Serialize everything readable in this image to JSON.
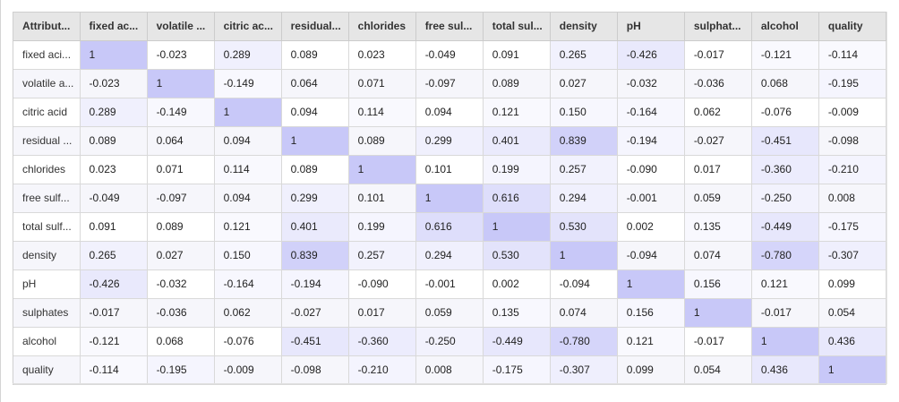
{
  "table": {
    "headers": [
      "Attribut...",
      "fixed ac...",
      "volatile ...",
      "citric ac...",
      "residual...",
      "chlorides",
      "free sul...",
      "total sul...",
      "density",
      "pH",
      "sulphat...",
      "alcohol",
      "quality"
    ],
    "rows": [
      {
        "label": "fixed aci...",
        "values": [
          "1",
          "-0.023",
          "0.289",
          "0.089",
          "0.023",
          "-0.049",
          "0.091",
          "0.265",
          "-0.426",
          "-0.017",
          "-0.121",
          "-0.114"
        ]
      },
      {
        "label": "volatile a...",
        "values": [
          "-0.023",
          "1",
          "-0.149",
          "0.064",
          "0.071",
          "-0.097",
          "0.089",
          "0.027",
          "-0.032",
          "-0.036",
          "0.068",
          "-0.195"
        ]
      },
      {
        "label": "citric acid",
        "values": [
          "0.289",
          "-0.149",
          "1",
          "0.094",
          "0.114",
          "0.094",
          "0.121",
          "0.150",
          "-0.164",
          "0.062",
          "-0.076",
          "-0.009"
        ]
      },
      {
        "label": "residual ...",
        "values": [
          "0.089",
          "0.064",
          "0.094",
          "1",
          "0.089",
          "0.299",
          "0.401",
          "0.839",
          "-0.194",
          "-0.027",
          "-0.451",
          "-0.098"
        ]
      },
      {
        "label": "chlorides",
        "values": [
          "0.023",
          "0.071",
          "0.114",
          "0.089",
          "1",
          "0.101",
          "0.199",
          "0.257",
          "-0.090",
          "0.017",
          "-0.360",
          "-0.210"
        ]
      },
      {
        "label": "free sulf...",
        "values": [
          "-0.049",
          "-0.097",
          "0.094",
          "0.299",
          "0.101",
          "1",
          "0.616",
          "0.294",
          "-0.001",
          "0.059",
          "-0.250",
          "0.008"
        ]
      },
      {
        "label": "total sulf...",
        "values": [
          "0.091",
          "0.089",
          "0.121",
          "0.401",
          "0.199",
          "0.616",
          "1",
          "0.530",
          "0.002",
          "0.135",
          "-0.449",
          "-0.175"
        ]
      },
      {
        "label": "density",
        "values": [
          "0.265",
          "0.027",
          "0.150",
          "0.839",
          "0.257",
          "0.294",
          "0.530",
          "1",
          "-0.094",
          "0.074",
          "-0.780",
          "-0.307"
        ]
      },
      {
        "label": "pH",
        "values": [
          "-0.426",
          "-0.032",
          "-0.164",
          "-0.194",
          "-0.090",
          "-0.001",
          "0.002",
          "-0.094",
          "1",
          "0.156",
          "0.121",
          "0.099"
        ]
      },
      {
        "label": "sulphates",
        "values": [
          "-0.017",
          "-0.036",
          "0.062",
          "-0.027",
          "0.017",
          "0.059",
          "0.135",
          "0.074",
          "0.156",
          "1",
          "-0.017",
          "0.054"
        ]
      },
      {
        "label": "alcohol",
        "values": [
          "-0.121",
          "0.068",
          "-0.076",
          "-0.451",
          "-0.360",
          "-0.250",
          "-0.449",
          "-0.780",
          "0.121",
          "-0.017",
          "1",
          "0.436"
        ]
      },
      {
        "label": "quality",
        "values": [
          "-0.114",
          "-0.195",
          "-0.009",
          "-0.098",
          "-0.210",
          "0.008",
          "-0.175",
          "-0.307",
          "0.099",
          "0.054",
          "0.436",
          "1"
        ]
      }
    ]
  },
  "colors": {
    "header_bg": "#e6e6e6",
    "even_row_bg": "#f6f6fb",
    "heat_max": "#c8c8f8",
    "heat_min": "#ffffff"
  }
}
